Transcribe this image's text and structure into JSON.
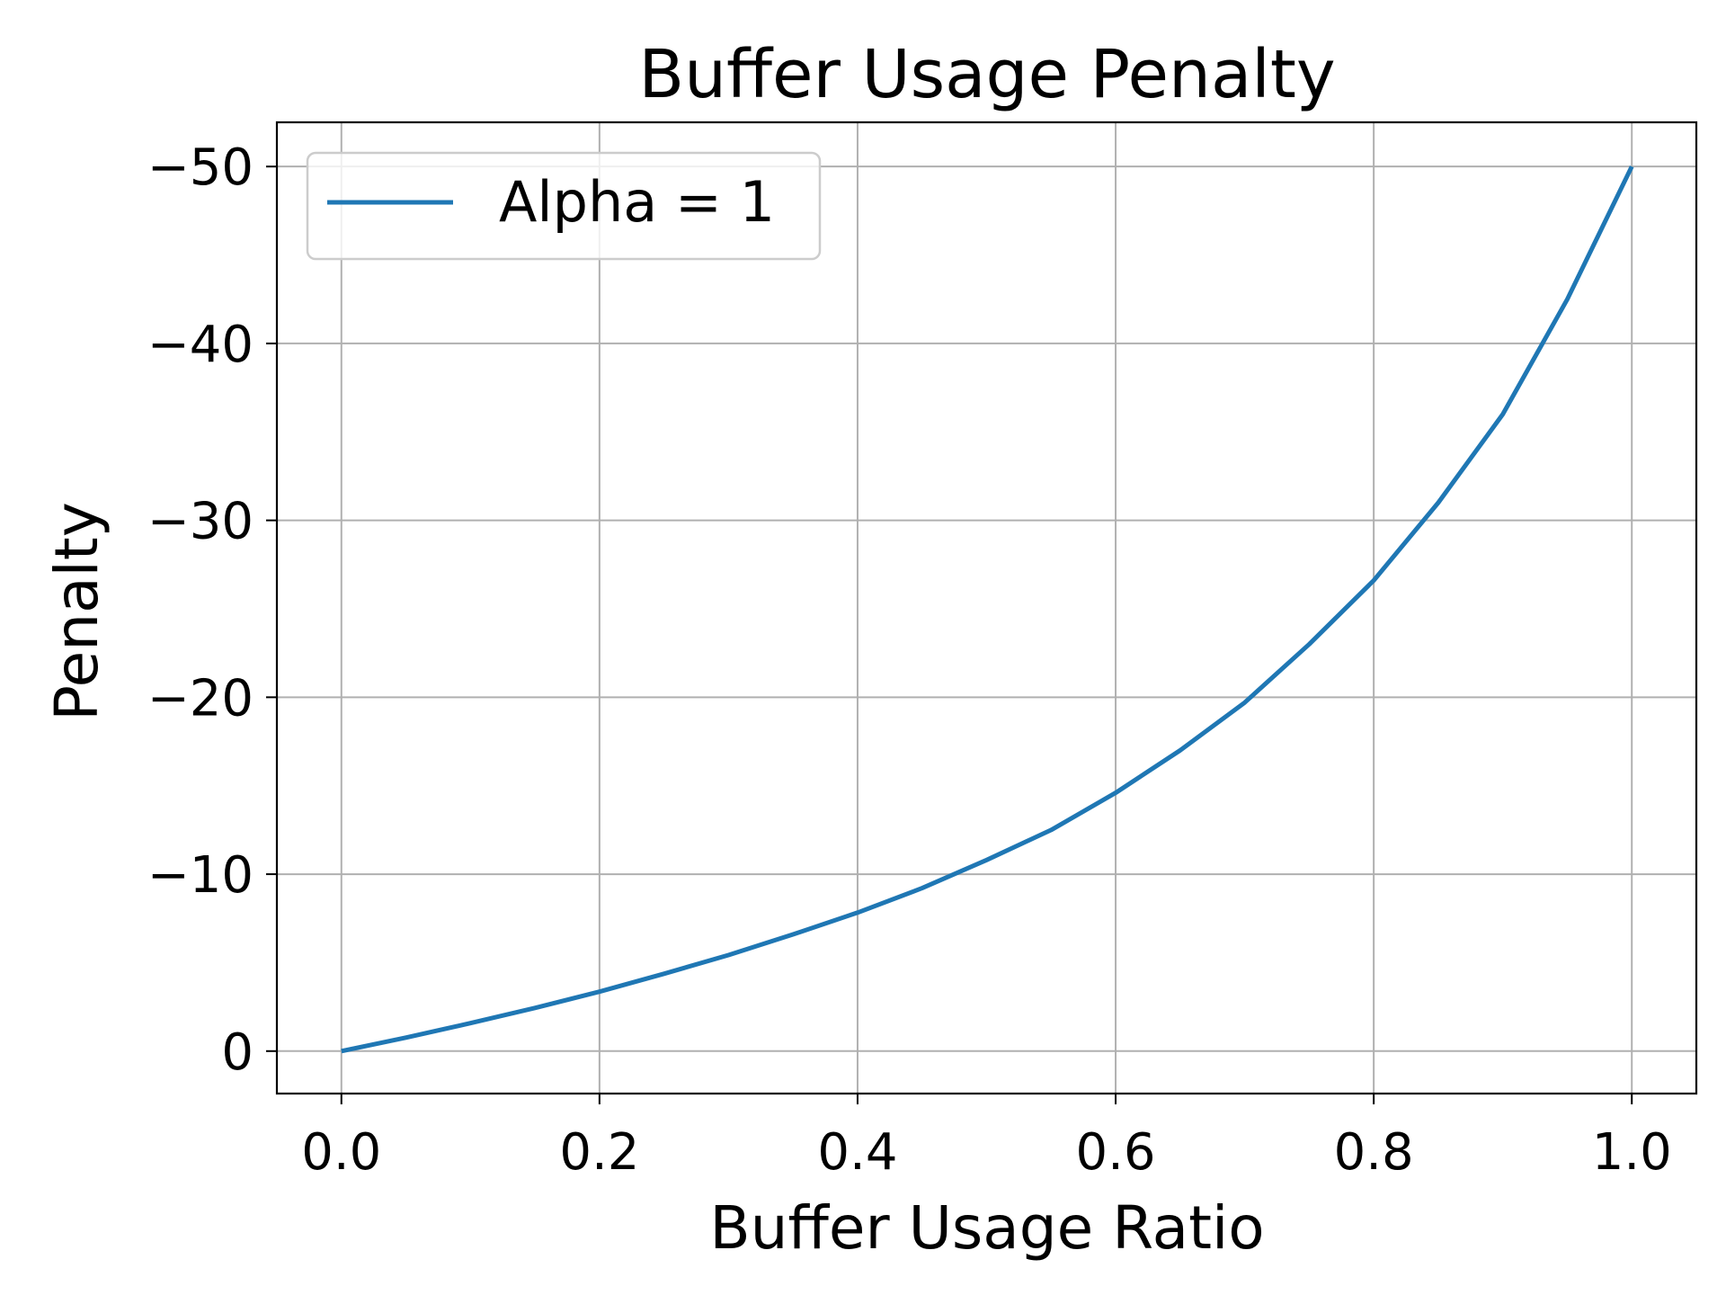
{
  "chart_data": {
    "type": "line",
    "title": "Buffer Usage Penalty",
    "xlabel": "Buffer Usage Ratio",
    "ylabel": "Penalty",
    "xlim": [
      -0.05,
      1.05
    ],
    "ylim": [
      2.4,
      -52.5
    ],
    "y_inverted": true,
    "x_ticks": [
      0.0,
      0.2,
      0.4,
      0.6,
      0.8,
      1.0
    ],
    "x_tick_labels": [
      "0.0",
      "0.2",
      "0.4",
      "0.6",
      "0.8",
      "1.0"
    ],
    "y_ticks": [
      0,
      -10,
      -20,
      -30,
      -40,
      -50
    ],
    "y_tick_labels": [
      "0",
      "−10",
      "−20",
      "−30",
      "−40",
      "−50"
    ],
    "grid": true,
    "legend_position": "top-left",
    "series": [
      {
        "name": "Alpha = 1",
        "color": "#1f77b4",
        "x": [
          0.0,
          0.05,
          0.1,
          0.15,
          0.2,
          0.25,
          0.3,
          0.35,
          0.4,
          0.45,
          0.5,
          0.55,
          0.6,
          0.65,
          0.7,
          0.75,
          0.8,
          0.85,
          0.9,
          0.95,
          1.0
        ],
        "y": [
          0.0,
          -0.76,
          -1.58,
          -2.44,
          -3.36,
          -4.37,
          -5.43,
          -6.6,
          -7.83,
          -9.21,
          -10.8,
          -12.5,
          -14.6,
          -17.0,
          -19.7,
          -23.0,
          -26.6,
          -31.0,
          -36.0,
          -42.5,
          -50.0
        ]
      }
    ]
  }
}
